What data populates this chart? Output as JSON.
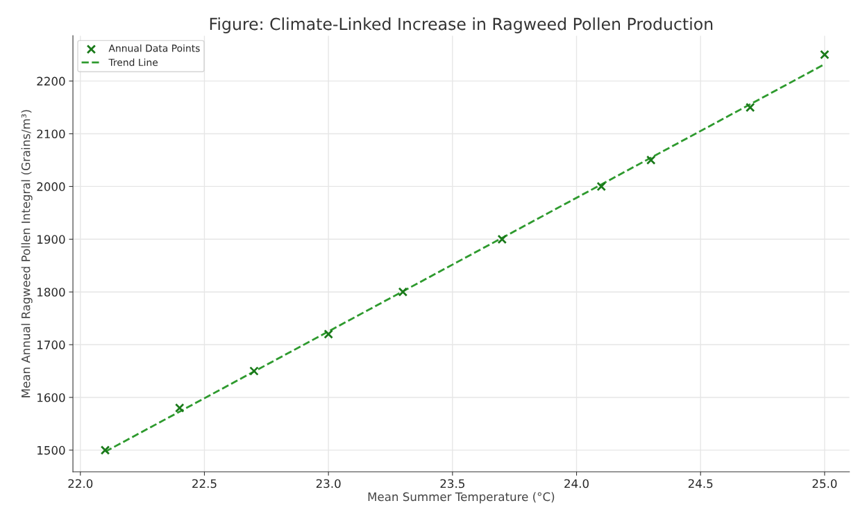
{
  "chart_data": {
    "type": "scatter",
    "title": "Figure: Climate-Linked Increase in Ragweed Pollen Production",
    "xlabel": "Mean Summer Temperature (°C)",
    "ylabel": "Mean Annual Ragweed Pollen Integral (Grains/m³)",
    "x": [
      22.1,
      22.4,
      22.7,
      23.0,
      23.3,
      23.7,
      24.1,
      24.3,
      24.7,
      25.0
    ],
    "series": [
      {
        "name": "Annual Data Points",
        "color": "#1a7a1a",
        "marker": "cross",
        "values": [
          1500,
          1580,
          1650,
          1720,
          1800,
          1900,
          2000,
          2050,
          2150,
          2250
        ]
      },
      {
        "name": "Trend Line",
        "type": "line",
        "color": "#2e9a2e",
        "line_style": "dashed",
        "marker": "none",
        "x": [
          22.1,
          25.0
        ],
        "values": [
          1497,
          2232
        ]
      }
    ],
    "xlim": [
      21.97,
      25.1
    ],
    "ylim": [
      1459,
      2286
    ],
    "xticks": [
      {
        "value": 22.0,
        "label": "22.0"
      },
      {
        "value": 22.5,
        "label": "22.5"
      },
      {
        "value": 23.0,
        "label": "23.0"
      },
      {
        "value": 23.5,
        "label": "23.5"
      },
      {
        "value": 24.0,
        "label": "24.0"
      },
      {
        "value": 24.5,
        "label": "24.5"
      },
      {
        "value": 25.0,
        "label": "25.0"
      }
    ],
    "yticks": [
      1500,
      1600,
      1700,
      1800,
      1900,
      2000,
      2100,
      2200
    ],
    "grid": true,
    "legend": "top left"
  }
}
